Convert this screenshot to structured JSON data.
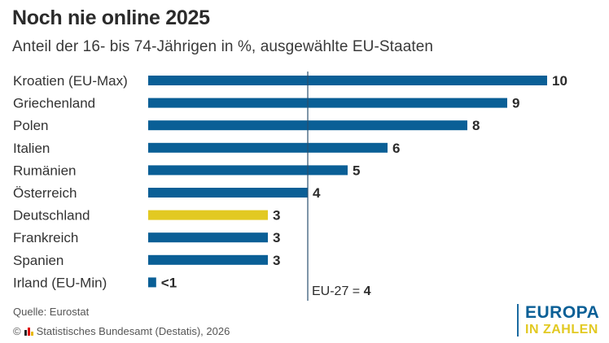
{
  "chart_data": {
    "type": "bar",
    "orientation": "horizontal",
    "title": "Noch nie online 2025",
    "subtitle": "Anteil der 16- bis 74-Jährigen in %, ausgewählte EU-Staaten",
    "categories": [
      "Kroatien (EU-Max)",
      "Griechenland",
      "Polen",
      "Italien",
      "Rumänien",
      "Österreich",
      "Deutschland",
      "Frankreich",
      "Spanien",
      "Irland (EU-Min)"
    ],
    "values": [
      10,
      9,
      8,
      6,
      5,
      4,
      3,
      3,
      3,
      0.2
    ],
    "value_labels": [
      "10",
      "9",
      "8",
      "6",
      "5",
      "4",
      "3",
      "3",
      "3",
      "<1"
    ],
    "highlight": "Deutschland",
    "xlim": [
      0,
      10
    ],
    "reference": {
      "label_prefix": "EU-27 = ",
      "label_value": "4",
      "value": 4
    },
    "colors": {
      "bar": "#0a5f96",
      "highlight": "#e2c922",
      "reference_line": "#2a4f6e"
    }
  },
  "footer": {
    "source": "Quelle: Eurostat",
    "copyright_symbol": "©",
    "copyright": "Statistisches Bundesamt (Destatis), 2026"
  },
  "logo": {
    "line1": "EUROPA",
    "line2": "IN ZAHLEN"
  }
}
